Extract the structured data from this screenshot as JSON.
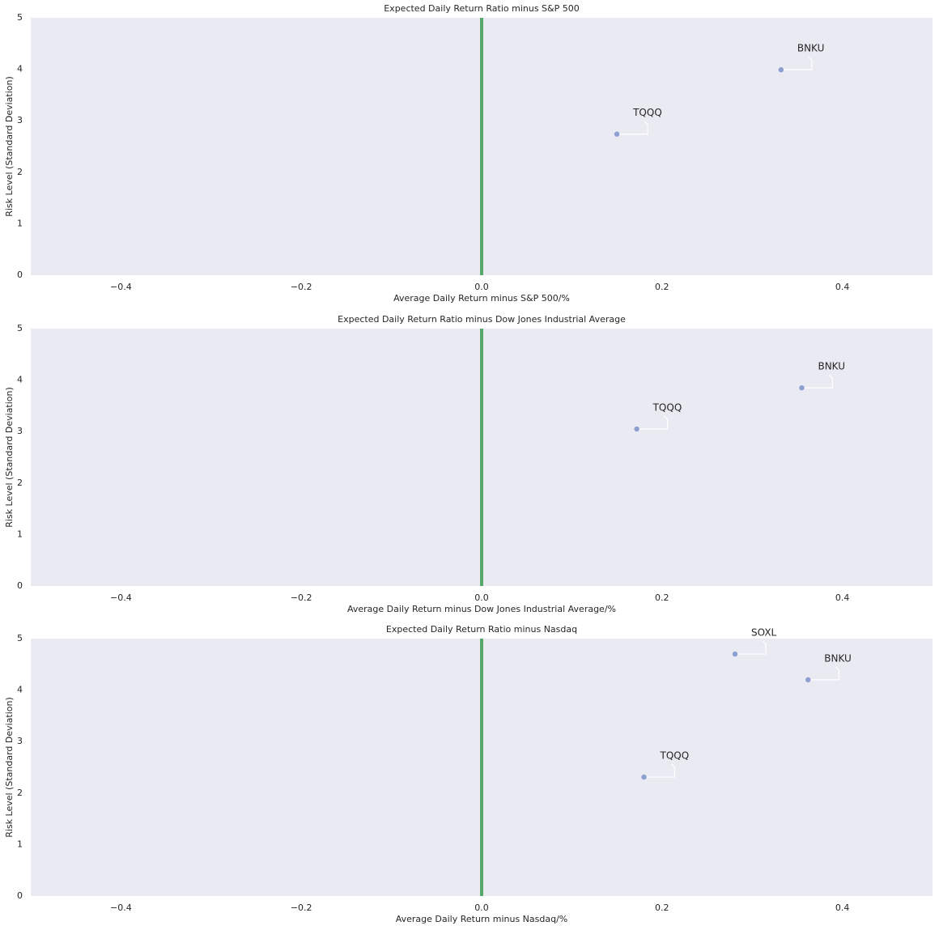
{
  "chart_data": [
    {
      "type": "scatter",
      "title": "Expected Daily Return Ratio minus S&P 500",
      "xlabel": "Average Daily Return minus S&P 500/%",
      "ylabel": "Risk Level (Standard Deviation)",
      "x": [
        0.15,
        0.332
      ],
      "values": [
        2.74,
        3.99
      ],
      "labels": [
        "TQQQ",
        "BNKU"
      ],
      "color": "#8c9fd0",
      "vline": 0,
      "vline_color": "#55a868",
      "xlim": [
        -0.5,
        0.5
      ],
      "ylim": [
        0,
        5
      ],
      "xticks": [
        {
          "value": -0.4,
          "label": "−0.4"
        },
        {
          "value": -0.2,
          "label": "−0.2"
        },
        {
          "value": 0,
          "label": "0.0"
        },
        0.2,
        0.4
      ],
      "yticks": [
        0,
        1,
        2,
        3,
        4,
        5
      ]
    },
    {
      "type": "scatter",
      "title": "Expected Daily Return Ratio minus Dow Jones Industrial Average",
      "xlabel": "Average Daily Return minus Dow Jones Industrial Average/%",
      "ylabel": "Risk Level (Standard Deviation)",
      "x": [
        0.172,
        0.355
      ],
      "values": [
        3.05,
        3.85
      ],
      "labels": [
        "TQQQ",
        "BNKU"
      ],
      "color": "#8c9fd0",
      "vline": 0,
      "vline_color": "#55a868",
      "xlim": [
        -0.5,
        0.5
      ],
      "ylim": [
        0,
        5
      ],
      "xticks": [
        {
          "value": -0.4,
          "label": "−0.4"
        },
        {
          "value": -0.2,
          "label": "−0.2"
        },
        {
          "value": 0,
          "label": "0.0"
        },
        0.2,
        0.4
      ],
      "yticks": [
        0,
        1,
        2,
        3,
        4,
        5
      ]
    },
    {
      "type": "scatter",
      "title": "Expected Daily Return Ratio minus Nasdaq",
      "xlabel": "Average Daily Return minus Nasdaq/%",
      "ylabel": "Risk Level (Standard Deviation)",
      "x": [
        0.281,
        0.362,
        0.18
      ],
      "values": [
        4.7,
        4.2,
        2.31
      ],
      "labels": [
        "SOXL",
        "BNKU",
        "TQQQ"
      ],
      "color": "#8c9fd0",
      "vline": 0,
      "vline_color": "#55a868",
      "xlim": [
        -0.5,
        0.5
      ],
      "ylim": [
        0,
        5
      ],
      "xticks": [
        {
          "value": -0.4,
          "label": "−0.4"
        },
        {
          "value": -0.2,
          "label": "−0.2"
        },
        {
          "value": 0,
          "label": "0.0"
        },
        0.2,
        0.4
      ],
      "yticks": [
        0,
        1,
        2,
        3,
        4,
        5
      ]
    }
  ]
}
